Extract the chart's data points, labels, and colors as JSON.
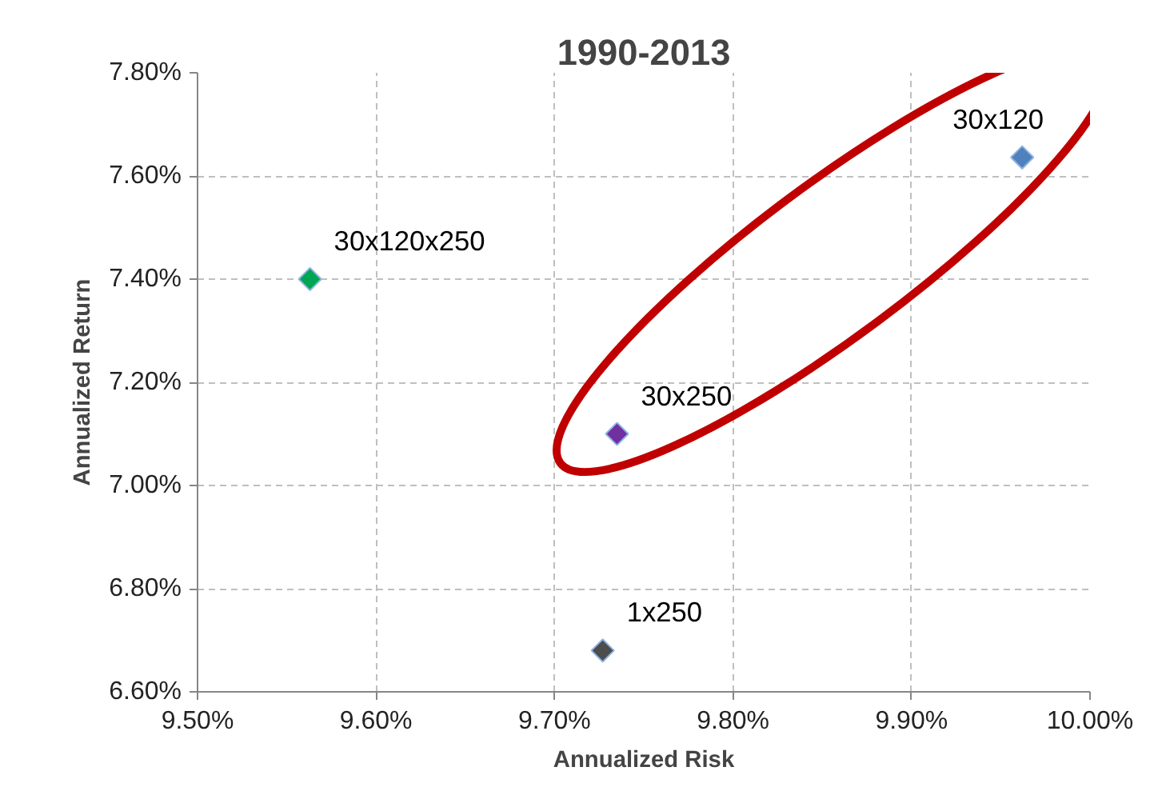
{
  "chart_data": {
    "type": "scatter",
    "title": "1990-2013",
    "xlabel": "Annualized Risk",
    "ylabel": "Annualized Return",
    "series": [
      {
        "name": "30x120x250",
        "color": "#00a651",
        "x": [
          9.563
        ],
        "values": [
          7.4
        ]
      },
      {
        "name": "30x120",
        "color": "#4f81bd",
        "x": [
          9.962
        ],
        "values": [
          7.636
        ]
      },
      {
        "name": "30x250",
        "color": "#7030a0",
        "x": [
          9.735
        ],
        "values": [
          7.1
        ]
      },
      {
        "name": "1x250",
        "color": "#4d4d4d",
        "x": [
          9.727
        ],
        "values": [
          6.68
        ]
      }
    ],
    "xlim": [
      9.5,
      10.0
    ],
    "xticks": [
      {
        "value": 9.5,
        "label": "9.50%"
      },
      {
        "value": 9.6,
        "label": "9.60%"
      },
      {
        "value": 9.7,
        "label": "9.70%"
      },
      {
        "value": 9.8,
        "label": "9.80%"
      },
      {
        "value": 9.9,
        "label": "9.90%"
      },
      {
        "value": 10.0,
        "label": "10.00%"
      }
    ],
    "ylim": [
      6.6,
      7.8
    ],
    "yticks": [
      {
        "value": 6.6,
        "label": "6.60%"
      },
      {
        "value": 6.8,
        "label": "6.80%"
      },
      {
        "value": 7.0,
        "label": "7.00%"
      },
      {
        "value": 7.2,
        "label": "7.20%"
      },
      {
        "value": 7.4,
        "label": "7.40%"
      },
      {
        "value": 7.6,
        "label": "7.60%"
      },
      {
        "value": 7.8,
        "label": "7.80%"
      }
    ],
    "grid": true,
    "marker": "diamond"
  }
}
